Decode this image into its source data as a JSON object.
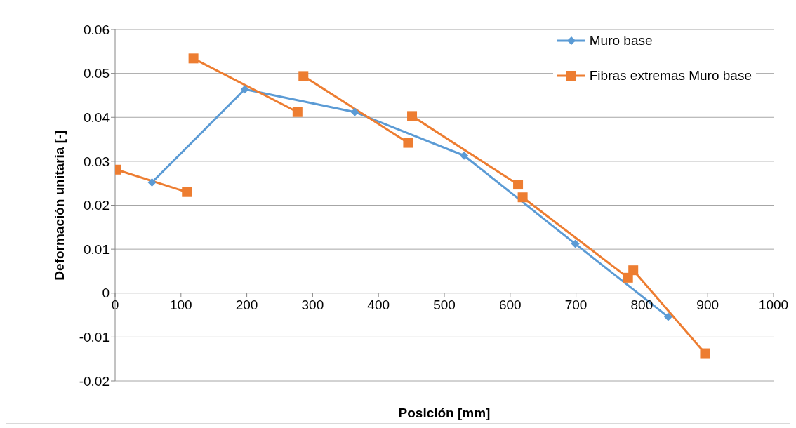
{
  "chart_data": {
    "type": "line",
    "xlabel": "Posición [mm]",
    "ylabel": "Deformación unitaria [-]",
    "xlim": [
      0,
      1000
    ],
    "xticks": [
      0,
      100,
      200,
      300,
      400,
      500,
      600,
      700,
      800,
      900,
      1000
    ],
    "ylim": [
      -0.02,
      0.06
    ],
    "yticks": [
      -0.02,
      -0.01,
      0,
      0.01,
      0.02,
      0.03,
      0.04,
      0.05,
      0.06
    ],
    "grid": "y",
    "legend": "top right",
    "series": [
      {
        "name": "Muro base",
        "color": "#5b9bd5",
        "marker": "diamond",
        "x": [
          56,
          197,
          364,
          530,
          699,
          840
        ],
        "values": [
          0.0252,
          0.0464,
          0.0412,
          0.0313,
          0.0112,
          -0.0054
        ]
      },
      {
        "name": "Fibras extremas Muro base",
        "color": "#ed7d31",
        "marker": "square",
        "x": [
          2,
          109,
          null,
          119,
          277,
          null,
          286,
          445,
          null,
          451,
          612,
          null,
          619,
          779,
          null,
          787,
          896
        ],
        "values": [
          0.0281,
          0.023,
          null,
          0.0534,
          0.0412,
          null,
          0.0494,
          0.0342,
          null,
          0.0403,
          0.0247,
          null,
          0.0218,
          0.0035,
          null,
          0.0052,
          -0.0137
        ]
      }
    ]
  }
}
